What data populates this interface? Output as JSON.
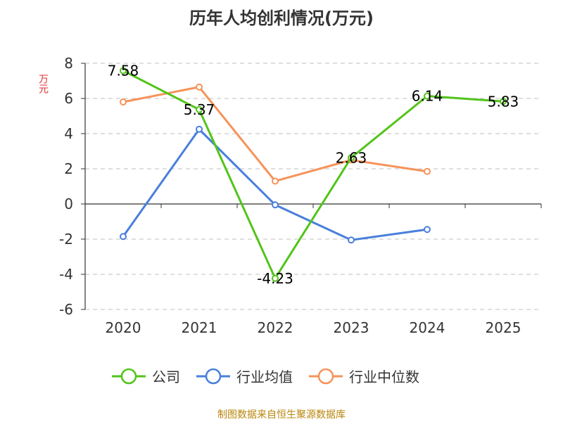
{
  "chart_data": {
    "type": "line",
    "title": "历年人均创利情况(万元)",
    "ylabel": "万元",
    "ylim": [
      -6,
      8
    ],
    "yticks": [
      "8",
      "6",
      "4",
      "2",
      "0",
      "-2",
      "-4",
      "-6"
    ],
    "categories": [
      "2020",
      "2021",
      "2022",
      "2023",
      "2024",
      "2025"
    ],
    "series": [
      {
        "name": "公司",
        "color": "#52c41a",
        "values": [
          7.58,
          5.37,
          -4.23,
          2.63,
          6.14,
          5.83
        ],
        "labels": [
          "7.58",
          "5.37",
          "-4.23",
          "2.63",
          "6.14",
          "5.83"
        ]
      },
      {
        "name": "行业均值",
        "color": "#4a7fdc",
        "values": [
          -1.85,
          4.25,
          -0.05,
          -2.05,
          -1.45,
          null
        ]
      },
      {
        "name": "行业中位数",
        "color": "#f5935a",
        "values": [
          5.8,
          6.65,
          1.3,
          2.5,
          1.85,
          null
        ]
      }
    ]
  },
  "source": "制图数据来自恒生聚源数据库"
}
